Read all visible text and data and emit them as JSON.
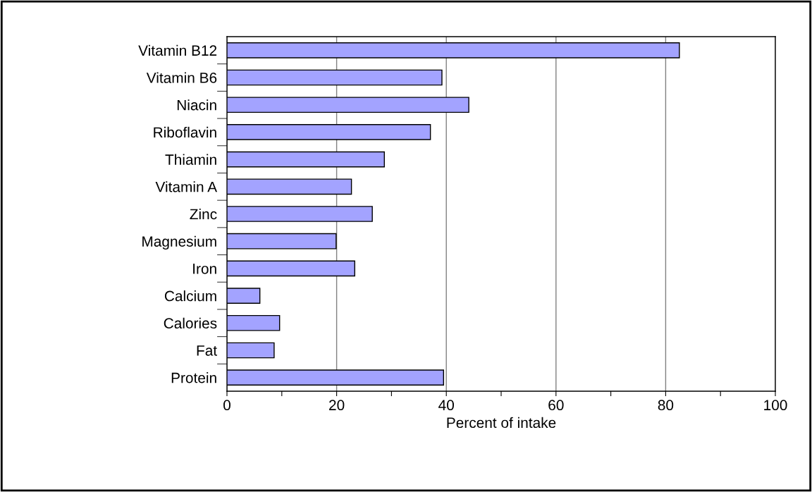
{
  "chart_data": {
    "type": "bar",
    "orientation": "horizontal",
    "xlabel": "Percent of intake",
    "categories": [
      "Vitamin B12",
      "Vitamin B6",
      "Niacin",
      "Riboflavin",
      "Thiamin",
      "Vitamin A",
      "Zinc",
      "Magnesium",
      "Iron",
      "Calcium",
      "Calories",
      "Fat",
      "Protein"
    ],
    "values": [
      82.5,
      39.2,
      44.1,
      37.1,
      28.7,
      22.7,
      26.5,
      19.9,
      23.3,
      6.0,
      9.6,
      8.6,
      39.5
    ],
    "color": "#a3a3ff",
    "xlim": [
      0,
      100
    ],
    "xticks": [
      0,
      {
        "value": 10,
        "label": null
      },
      20,
      {
        "value": 30,
        "label": null
      },
      40,
      {
        "value": 50,
        "label": null
      },
      60,
      {
        "value": 70,
        "label": null
      },
      80,
      {
        "value": 90,
        "label": null
      },
      100
    ],
    "grid": "x"
  }
}
